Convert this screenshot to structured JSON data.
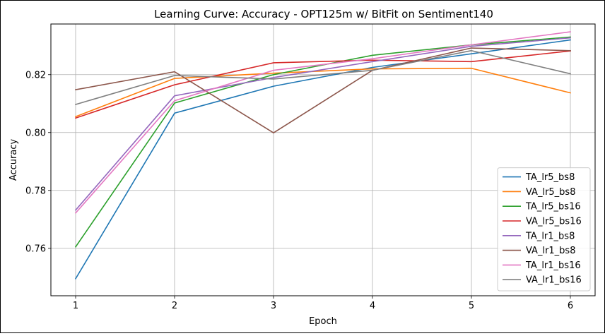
{
  "chart_data": {
    "type": "line",
    "title": "Learning Curve: Accuracy - OPT125m w/ BitFit on Sentiment140",
    "xlabel": "Epoch",
    "ylabel": "Accuracy",
    "x": [
      1,
      2,
      3,
      4,
      5,
      6
    ],
    "xlim": [
      0.75,
      6.25
    ],
    "ylim": [
      0.7436,
      0.8375
    ],
    "xticks": [
      1,
      2,
      3,
      4,
      5,
      6
    ],
    "xtick_labels": [
      "1",
      "2",
      "3",
      "4",
      "5",
      "6"
    ],
    "yticks": [
      0.76,
      0.78,
      0.8,
      0.82
    ],
    "ytick_labels": [
      "0.76",
      "0.78",
      "0.80",
      "0.82"
    ],
    "grid": true,
    "legend_position": "lower-right",
    "series": [
      {
        "name": "TA_lr5_bs8",
        "color": "#1f77b4",
        "values": [
          0.7495,
          0.8067,
          0.816,
          0.8225,
          0.8272,
          0.832
        ]
      },
      {
        "name": "VA_lr5_bs8",
        "color": "#ff7f0e",
        "values": [
          0.8055,
          0.8187,
          0.8205,
          0.822,
          0.8222,
          0.8137
        ]
      },
      {
        "name": "TA_lr5_bs16",
        "color": "#2ca02c",
        "values": [
          0.7605,
          0.8102,
          0.82,
          0.8267,
          0.8303,
          0.833
        ]
      },
      {
        "name": "VA_lr5_bs16",
        "color": "#d62728",
        "values": [
          0.805,
          0.8165,
          0.8241,
          0.825,
          0.8245,
          0.8282
        ]
      },
      {
        "name": "TA_lr1_bs8",
        "color": "#9467bd",
        "values": [
          0.7732,
          0.8127,
          0.819,
          0.8245,
          0.8298,
          0.8327
        ]
      },
      {
        "name": "VA_lr1_bs8",
        "color": "#8c564b",
        "values": [
          0.8148,
          0.821,
          0.7999,
          0.8215,
          0.8292,
          0.8283
        ]
      },
      {
        "name": "TA_lr1_bs16",
        "color": "#e377c2",
        "values": [
          0.7722,
          0.811,
          0.8215,
          0.8255,
          0.8303,
          0.8348
        ]
      },
      {
        "name": "VA_lr1_bs16",
        "color": "#7f7f7f",
        "values": [
          0.8097,
          0.8197,
          0.8185,
          0.8215,
          0.8283,
          0.8203
        ]
      }
    ]
  }
}
